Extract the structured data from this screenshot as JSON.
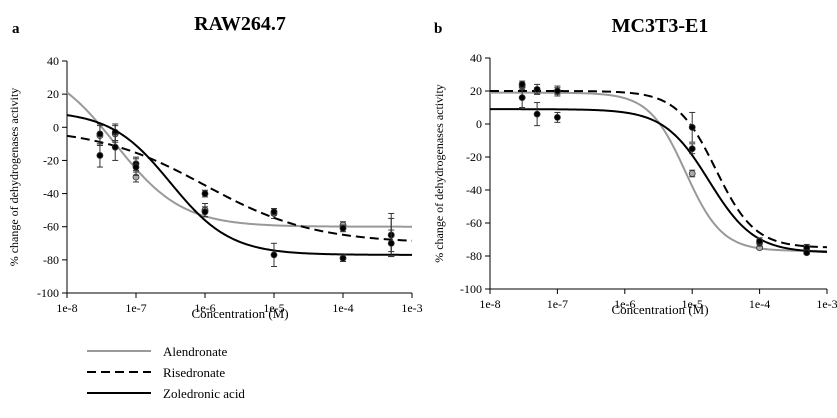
{
  "chart_data": [
    {
      "panel_label": "a",
      "type": "line",
      "title": "RAW264.7",
      "xlabel": "Concentration (M)",
      "ylabel": "% change of dehydrogenases activity",
      "x_scale": "log",
      "x_ticks": [
        "1e-8",
        "1e-7",
        "1e-6",
        "1e-5",
        "1e-4",
        "1e-3"
      ],
      "y_ticks": [
        "40",
        "20",
        "0",
        "-20",
        "-40",
        "-60",
        "-80",
        "-100"
      ],
      "xlim": [
        1e-08,
        0.001
      ],
      "ylim": [
        -100,
        40
      ],
      "grid": false,
      "series": [
        {
          "name": "Alendronate",
          "color": "#999999",
          "dash": "solid",
          "marker_fill": "#aaaaaa",
          "fit": {
            "top": 40,
            "bottom": -60,
            "log_ec50": -7.3,
            "hill": 0.9
          },
          "points": [
            {
              "x": 3e-08,
              "y": -5,
              "err": 6
            },
            {
              "x": 5e-08,
              "y": -4,
              "err": 5
            },
            {
              "x": 1e-07,
              "y": -30,
              "err": 3
            },
            {
              "x": 1e-06,
              "y": -50,
              "err": 4
            },
            {
              "x": 1e-05,
              "y": -52,
              "err": 3
            },
            {
              "x": 0.0001,
              "y": -59,
              "err": 2
            },
            {
              "x": 0.0005,
              "y": -65,
              "err": 13
            }
          ]
        },
        {
          "name": "Risedronate",
          "color": "#000000",
          "dash": "dashed",
          "marker_fill": "#000000",
          "fit": {
            "top": 0,
            "bottom": -70,
            "log_ec50": -6.0,
            "hill": 0.55
          },
          "points": [
            {
              "x": 3e-08,
              "y": -4,
              "err": 6
            },
            {
              "x": 5e-08,
              "y": -3,
              "err": 5
            },
            {
              "x": 1e-07,
              "y": -22,
              "err": 4
            },
            {
              "x": 1e-06,
              "y": -40,
              "err": 2
            },
            {
              "x": 1e-05,
              "y": -51,
              "err": 2
            },
            {
              "x": 0.0001,
              "y": -61,
              "err": 2
            },
            {
              "x": 0.0005,
              "y": -65,
              "err": 10
            }
          ]
        },
        {
          "name": "Zoledronic acid",
          "color": "#000000",
          "dash": "solid",
          "marker_fill": "#000000",
          "fit": {
            "top": 10,
            "bottom": -77,
            "log_ec50": -6.5,
            "hill": 1.0
          },
          "points": [
            {
              "x": 3e-08,
              "y": -17,
              "err": 7
            },
            {
              "x": 5e-08,
              "y": -12,
              "err": 8
            },
            {
              "x": 1e-07,
              "y": -24,
              "err": 5
            },
            {
              "x": 1e-06,
              "y": -51,
              "err": 3
            },
            {
              "x": 1e-05,
              "y": -77,
              "err": 7
            },
            {
              "x": 0.0001,
              "y": -79,
              "err": 2
            },
            {
              "x": 0.0005,
              "y": -70,
              "err": 8
            }
          ]
        }
      ]
    },
    {
      "panel_label": "b",
      "type": "line",
      "title": "MC3T3-E1",
      "xlabel": "Concentration (M)",
      "ylabel": "% change of dehydrogenases activity",
      "x_scale": "log",
      "x_ticks": [
        "1e-8",
        "1e-7",
        "1e-6",
        "1e-5",
        "1e-4",
        "1e-3"
      ],
      "y_ticks": [
        "40",
        "20",
        "0",
        "-20",
        "-40",
        "-60",
        "-80",
        "-100"
      ],
      "xlim": [
        1e-08,
        0.001
      ],
      "ylim": [
        -100,
        40
      ],
      "grid": false,
      "series": [
        {
          "name": "Alendronate",
          "color": "#999999",
          "dash": "solid",
          "marker_fill": "#aaaaaa",
          "fit": {
            "top": 19,
            "bottom": -77,
            "log_ec50": -5.1,
            "hill": 1.6
          },
          "points": [
            {
              "x": 3e-08,
              "y": 23,
              "err": 2
            },
            {
              "x": 5e-08,
              "y": 20,
              "err": 2
            },
            {
              "x": 1e-07,
              "y": 20,
              "err": 2
            },
            {
              "x": 1e-05,
              "y": -30,
              "err": 2
            },
            {
              "x": 0.0001,
              "y": -75,
              "err": 1
            },
            {
              "x": 0.0005,
              "y": -77,
              "err": 1
            }
          ]
        },
        {
          "name": "Risedronate",
          "color": "#000000",
          "dash": "dashed",
          "marker_fill": "#000000",
          "fit": {
            "top": 20,
            "bottom": -75,
            "log_ec50": -4.65,
            "hill": 1.5
          },
          "points": [
            {
              "x": 3e-08,
              "y": 24,
              "err": 2
            },
            {
              "x": 5e-08,
              "y": 21,
              "err": 3
            },
            {
              "x": 1e-07,
              "y": 20,
              "err": 3
            },
            {
              "x": 1e-05,
              "y": -2,
              "err": 9
            },
            {
              "x": 0.0001,
              "y": -72,
              "err": 2
            },
            {
              "x": 0.0005,
              "y": -75,
              "err": 2
            }
          ]
        },
        {
          "name": "Zoledronic acid",
          "color": "#000000",
          "dash": "solid",
          "marker_fill": "#000000",
          "fit": {
            "top": 9,
            "bottom": -78,
            "log_ec50": -4.75,
            "hill": 1.3
          },
          "points": [
            {
              "x": 3e-08,
              "y": 16,
              "err": 6
            },
            {
              "x": 5e-08,
              "y": 6,
              "err": 7
            },
            {
              "x": 1e-07,
              "y": 4,
              "err": 3
            },
            {
              "x": 1e-05,
              "y": -15,
              "err": 3
            },
            {
              "x": 0.0001,
              "y": -71,
              "err": 2
            },
            {
              "x": 0.0005,
              "y": -78,
              "err": 1
            }
          ]
        }
      ]
    }
  ],
  "legend": {
    "placement": "bottom-left",
    "items": [
      {
        "label": "Alendronate",
        "color": "#999999",
        "dash": "solid"
      },
      {
        "label": "Risedronate",
        "color": "#000000",
        "dash": "dashed"
      },
      {
        "label": "Zoledronic acid",
        "color": "#000000",
        "dash": "solid"
      }
    ]
  }
}
